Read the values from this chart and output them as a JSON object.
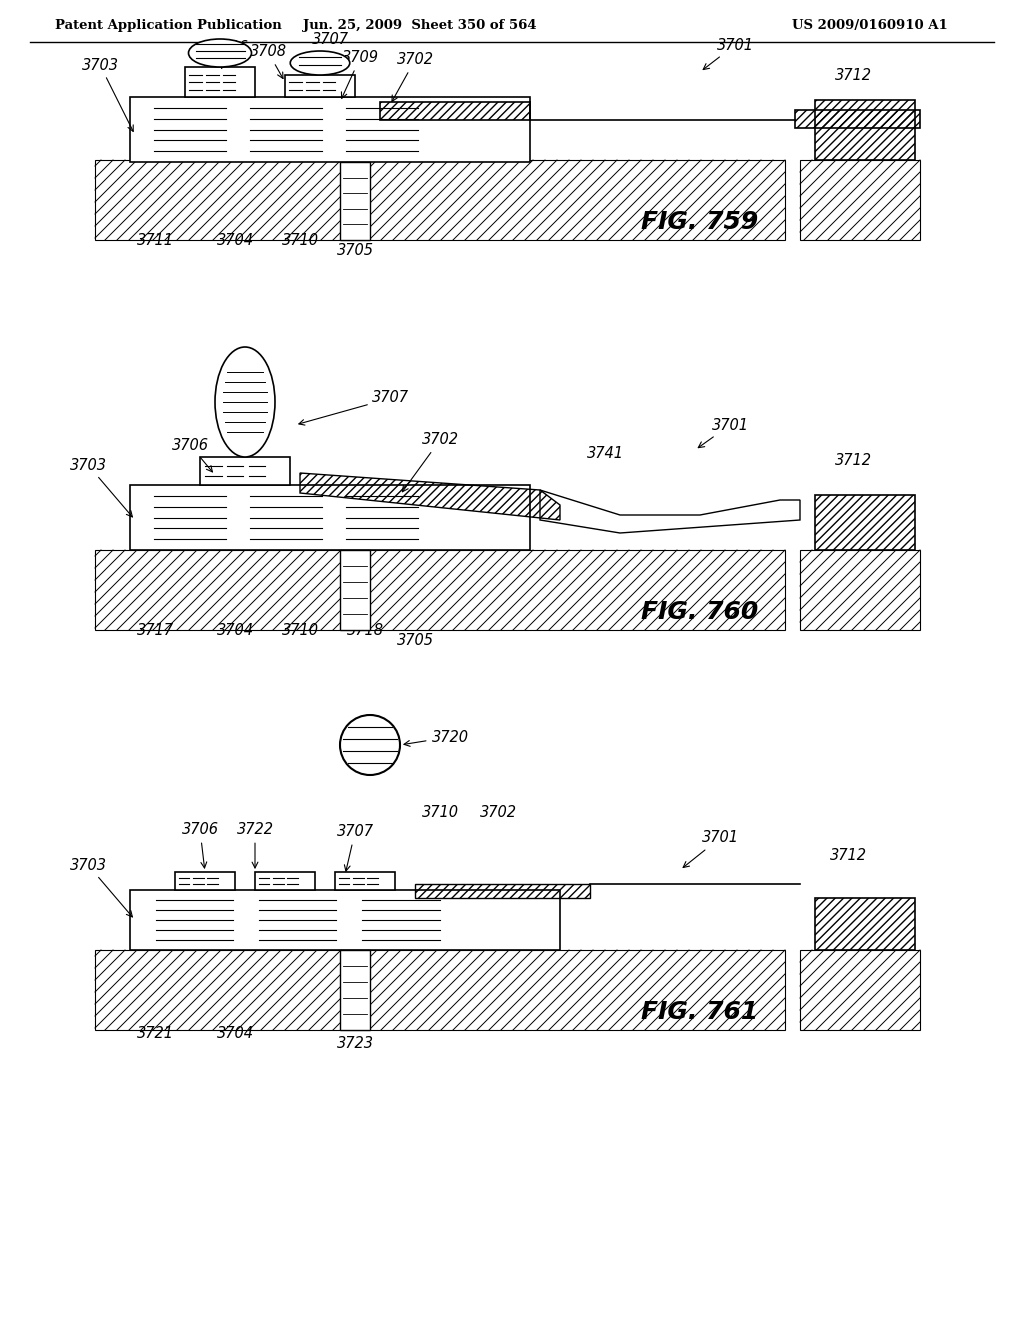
{
  "header_left": "Patent Application Publication",
  "header_mid": "Jun. 25, 2009  Sheet 350 of 564",
  "header_right": "US 2009/0160910 A1",
  "fig759_label": "FIG. 759",
  "fig760_label": "FIG. 760",
  "fig761_label": "FIG. 761",
  "background_color": "#ffffff",
  "line_color": "#000000",
  "hatch_color": "#000000",
  "header_fontsize": 10,
  "fig_label_fontsize": 18,
  "anno_fontsize": 10.5
}
